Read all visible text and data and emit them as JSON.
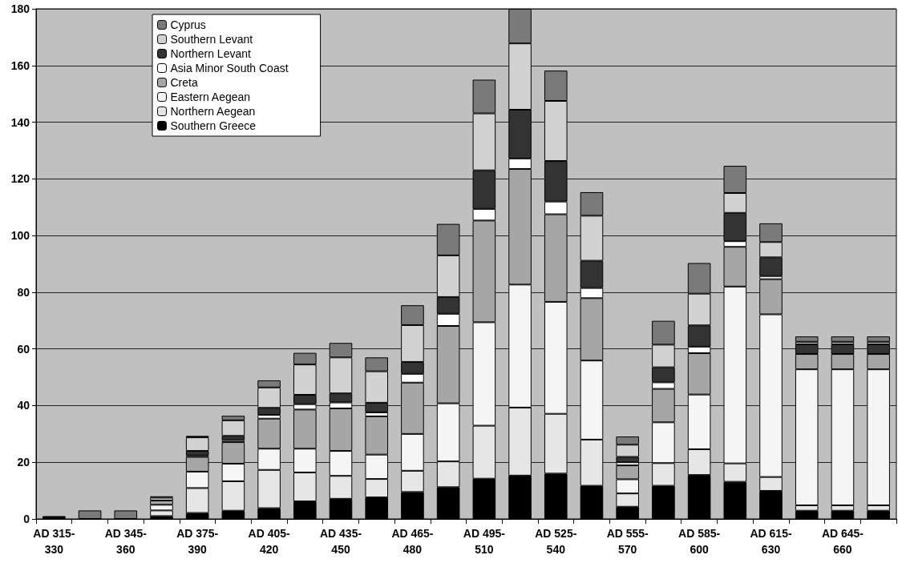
{
  "chart_data": {
    "type": "bar",
    "stacked": true,
    "categories": [
      "AD 315-330",
      null,
      "AD 345-360",
      null,
      "AD 375-390",
      null,
      "AD 405-420",
      null,
      "AD 435-450",
      null,
      "AD 465-480",
      null,
      "AD 495-510",
      null,
      "AD 525-540",
      null,
      "AD 555-570",
      null,
      "AD 585-600",
      null,
      "AD 615-630",
      null,
      "AD 645-660",
      null
    ],
    "ylim": [
      0,
      180
    ],
    "yticks": [
      0,
      20,
      40,
      60,
      80,
      100,
      120,
      140,
      160,
      180
    ],
    "grid": "y",
    "legend": "top left",
    "series": [
      {
        "name": "Southern Greece",
        "color": "#000000",
        "values": [
          1,
          null,
          null,
          1,
          2.1,
          2.9,
          3.8,
          6.2,
          7.1,
          7.6,
          9.5,
          11.2,
          14.2,
          15.3,
          16,
          11.7,
          4.3,
          11.7,
          15.5,
          13.1,
          9.9,
          2.9,
          2.9,
          2.9
        ]
      },
      {
        "name": "Northern Aegean",
        "color": "#e6e6e6",
        "values": [
          null,
          null,
          null,
          2,
          8.8,
          10.4,
          13.5,
          10.2,
          8.1,
          6.5,
          7.5,
          9.1,
          18.7,
          24,
          21.1,
          16.3,
          4.7,
          8,
          9.1,
          6.5,
          4.9,
          1.9,
          1.9,
          1.9
        ]
      },
      {
        "name": "Eastern Aegean",
        "color": "#f5f5f5",
        "values": [
          null,
          null,
          null,
          2,
          5.8,
          6.2,
          7.5,
          8.4,
          8.8,
          8.6,
          13,
          20.5,
          36.5,
          43.4,
          39.5,
          27.9,
          5,
          14.4,
          19.3,
          62.4,
          57.4,
          48,
          48,
          48
        ]
      },
      {
        "name": "Creta",
        "color": "#a6a6a6",
        "values": [
          null,
          null,
          null,
          1.5,
          5.2,
          7.6,
          10.6,
          13.8,
          15,
          13.5,
          18.1,
          27.3,
          35.9,
          40.8,
          30.9,
          22,
          4.9,
          11.8,
          14.6,
          14,
          12.4,
          5.4,
          5.4,
          5.4
        ]
      },
      {
        "name": "Asia Minor South Coast",
        "color": "#ffffff",
        "values": [
          null,
          null,
          null,
          null,
          0.5,
          0.7,
          1.3,
          1.9,
          2.1,
          1.4,
          3.1,
          4.3,
          4.1,
          3.7,
          4.5,
          3.6,
          1.1,
          2.3,
          2.3,
          2,
          1.1,
          null,
          null,
          null
        ]
      },
      {
        "name": "Northern Levant",
        "color": "#333333",
        "values": [
          null,
          null,
          null,
          null,
          1.6,
          1.5,
          2.5,
          3.3,
          3.2,
          3.4,
          4.2,
          5.9,
          13.6,
          17.2,
          14.3,
          9.6,
          1.9,
          5.3,
          7.5,
          10,
          6.6,
          3.4,
          3.4,
          3.4
        ]
      },
      {
        "name": "Southern Levant",
        "color": "#d2d2d2",
        "values": [
          null,
          null,
          null,
          1,
          4.8,
          5.5,
          7.2,
          10.7,
          12.7,
          11.1,
          13,
          14.7,
          20.1,
          23.4,
          21.2,
          15.9,
          4.3,
          8,
          11.2,
          7,
          5.4,
          0.9,
          0.9,
          0.9
        ]
      },
      {
        "name": "Cyprus",
        "color": "#7a7a7a",
        "values": [
          null,
          3,
          3,
          0.5,
          0.5,
          1.6,
          2.5,
          4.1,
          5.1,
          4.9,
          7,
          11.1,
          11.9,
          12.2,
          10.7,
          8.3,
          2.9,
          8.4,
          10.8,
          9.6,
          6.6,
          1.9,
          1.9,
          1.9
        ]
      }
    ]
  }
}
